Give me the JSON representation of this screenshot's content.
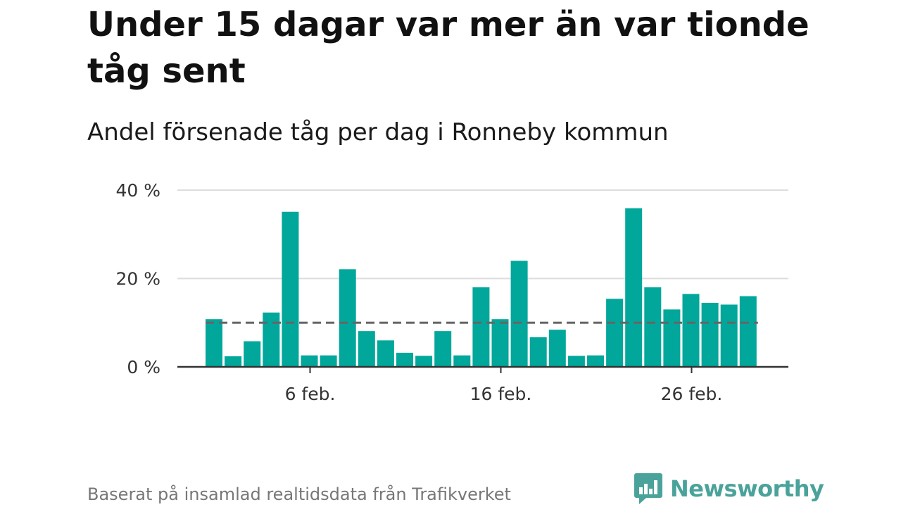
{
  "title": "Under 15 dagar var mer än var tionde tåg sent",
  "subtitle": "Andel försenade tåg per dag i Ronneby kommun",
  "footer": "Baserat på insamlad realtidsdata från Trafikverket",
  "brand": {
    "name": "Newsworthy",
    "color": "#4aa39a"
  },
  "colors": {
    "bar": "#00a79a",
    "reference": "#666666",
    "grid": "#dddddd",
    "axis": "#333333"
  },
  "chart_data": {
    "type": "bar",
    "x": [
      1,
      2,
      3,
      4,
      5,
      6,
      7,
      8,
      9,
      10,
      11,
      12,
      13,
      14,
      15,
      16,
      17,
      18,
      19,
      20,
      21,
      22,
      23,
      24,
      25,
      26,
      27,
      28,
      29
    ],
    "values": [
      10.8,
      2.4,
      5.8,
      12.3,
      35.1,
      2.6,
      2.6,
      22.1,
      8.1,
      6.0,
      3.2,
      2.5,
      8.1,
      2.6,
      18.0,
      10.8,
      24.0,
      6.7,
      8.4,
      2.5,
      2.6,
      15.4,
      35.9,
      18.0,
      13.0,
      16.5,
      14.5,
      14.1,
      16.0
    ],
    "reference_line": 10,
    "ylim": [
      0,
      40
    ],
    "y_ticks": [
      0,
      20,
      40
    ],
    "y_tick_labels": [
      "0 %",
      "20 %",
      "40 %"
    ],
    "x_ticks": [
      6,
      16,
      26
    ],
    "x_tick_labels": [
      "6 feb.",
      "16 feb.",
      "26 feb."
    ],
    "grid": true
  }
}
